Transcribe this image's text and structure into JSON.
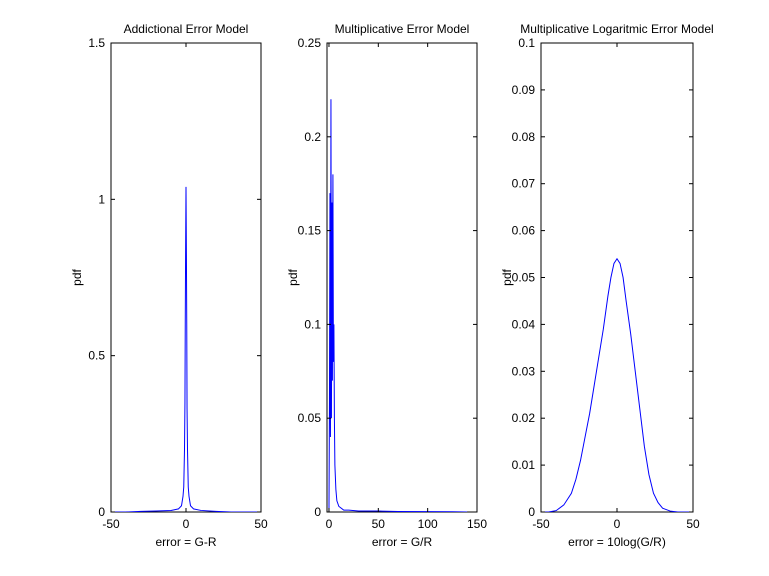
{
  "chart_data": [
    {
      "type": "line",
      "title": "Addictional Error Model",
      "xlabel": "error = G-R",
      "ylabel": "pdf",
      "xlim": [
        -50,
        50
      ],
      "ylim": [
        0,
        1.5
      ],
      "xticks": [
        -50,
        0,
        50
      ],
      "yticks": [
        0,
        0.5,
        1,
        1.5
      ],
      "xtick_labels": [
        "-50",
        "0",
        "50"
      ],
      "ytick_labels": [
        "0",
        "0.5",
        "1",
        "1.5"
      ],
      "grid": false,
      "color": "#0000ff",
      "series": [
        {
          "x": [
            -50,
            -40,
            -30,
            -20,
            -10,
            -5,
            -3,
            -2,
            -1.5,
            -1,
            -0.7,
            -0.5,
            -0.3,
            0,
            0.3,
            0.5,
            0.7,
            1,
            1.5,
            2,
            3,
            5,
            10,
            20,
            30,
            40,
            50
          ],
          "y": [
            0,
            0,
            0.002,
            0.003,
            0.005,
            0.01,
            0.02,
            0.05,
            0.08,
            0.2,
            0.35,
            0.6,
            0.8,
            1.04,
            0.8,
            0.6,
            0.33,
            0.2,
            0.08,
            0.05,
            0.02,
            0.01,
            0.005,
            0.002,
            0,
            0,
            0
          ]
        }
      ]
    },
    {
      "type": "line",
      "title": "Multiplicative Error Model",
      "xlabel": "error = G/R",
      "ylabel": "pdf",
      "xlim": [
        -2,
        150
      ],
      "ylim": [
        0,
        0.25
      ],
      "xticks": [
        0,
        50,
        100,
        150
      ],
      "yticks": [
        0,
        0.05,
        0.1,
        0.15,
        0.2,
        0.25
      ],
      "xtick_labels": [
        "0",
        "50",
        "100",
        "150"
      ],
      "ytick_labels": [
        "0",
        "0.05",
        "0.1",
        "0.15",
        "0.2",
        "0.25"
      ],
      "grid": false,
      "color": "#0000ff",
      "series": [
        {
          "x": [
            0,
            0.5,
            1,
            1.5,
            2,
            2.5,
            3,
            3.5,
            4,
            4.5,
            5,
            5.5,
            6,
            7,
            8,
            10,
            15,
            20,
            30,
            50,
            70,
            100,
            125,
            140
          ],
          "y": [
            0,
            0.06,
            0.17,
            0.04,
            0.22,
            0.05,
            0.165,
            0.07,
            0.18,
            0.08,
            0.1,
            0.05,
            0.025,
            0.012,
            0.006,
            0.003,
            0.001,
            0.001,
            0.0005,
            0.0005,
            0.0003,
            0.0002,
            0.0001,
            0
          ]
        }
      ]
    },
    {
      "type": "line",
      "title": "Multiplicative Logaritmic Error Model",
      "xlabel": "error = 10log(G/R)",
      "ylabel": "pdf",
      "xlim": [
        -50,
        50
      ],
      "ylim": [
        0,
        0.1
      ],
      "xticks": [
        -50,
        0,
        50
      ],
      "yticks": [
        0,
        0.01,
        0.02,
        0.03,
        0.04,
        0.05,
        0.06,
        0.07,
        0.08,
        0.09,
        0.1
      ],
      "xtick_labels": [
        "-50",
        "0",
        "50"
      ],
      "ytick_labels": [
        "0",
        "0.01",
        "0.02",
        "0.03",
        "0.04",
        "0.05",
        "0.06",
        "0.07",
        "0.08",
        "0.09",
        "0.1"
      ],
      "grid": false,
      "color": "#0000ff",
      "series": [
        {
          "x": [
            -50,
            -45,
            -40,
            -35,
            -30,
            -27,
            -24,
            -21,
            -18,
            -15,
            -12,
            -9,
            -6,
            -4,
            -2,
            0,
            2,
            4,
            6,
            9,
            12,
            15,
            18,
            21,
            24,
            27,
            30,
            35,
            40,
            45,
            50
          ],
          "y": [
            0,
            0,
            0.0003,
            0.0015,
            0.004,
            0.007,
            0.011,
            0.016,
            0.021,
            0.027,
            0.033,
            0.039,
            0.046,
            0.05,
            0.053,
            0.054,
            0.053,
            0.05,
            0.045,
            0.038,
            0.03,
            0.022,
            0.014,
            0.008,
            0.004,
            0.002,
            0.0008,
            0.0002,
            0,
            0,
            0
          ]
        }
      ]
    }
  ]
}
